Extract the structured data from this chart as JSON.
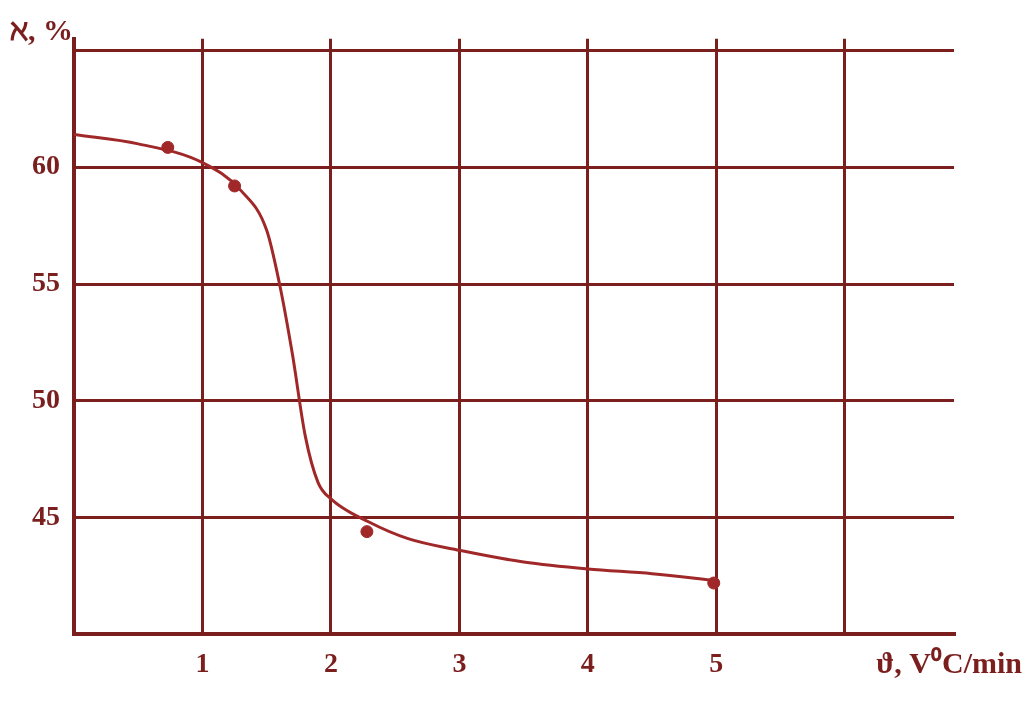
{
  "chart_data": {
    "type": "scatter",
    "xlabel": "ϑ, V⁰C/min",
    "ylabel": "ℵ, %",
    "xlim": [
      0,
      6.85
    ],
    "xticks": [
      1,
      2,
      3,
      4,
      5,
      {
        "value": 6,
        "label": null
      }
    ],
    "ylim": [
      40,
      65.5
    ],
    "yticks": [
      45,
      50,
      55,
      60,
      {
        "value": 65,
        "label": null
      }
    ],
    "grid": true,
    "legend": false,
    "series": [
      {
        "marker": "circle",
        "color": "#a02828",
        "x": [
          0.73,
          1.25,
          2.28,
          4.98
        ],
        "values": [
          60.85,
          59.2,
          44.4,
          42.2
        ]
      },
      {
        "type": "line",
        "marker": "none",
        "color": "#a02828",
        "x": [
          0,
          0.5,
          1,
          1.3,
          1.5,
          1.6,
          1.7,
          1.8,
          1.9,
          2,
          2.3,
          2.6,
          3,
          3.5,
          4,
          4.5,
          5
        ],
        "values": [
          61.4,
          61,
          60.2,
          59,
          57.3,
          55,
          52,
          48.5,
          46.5,
          45.8,
          44.8,
          44.1,
          43.6,
          43.1,
          42.8,
          42.6,
          42.3
        ]
      }
    ]
  }
}
